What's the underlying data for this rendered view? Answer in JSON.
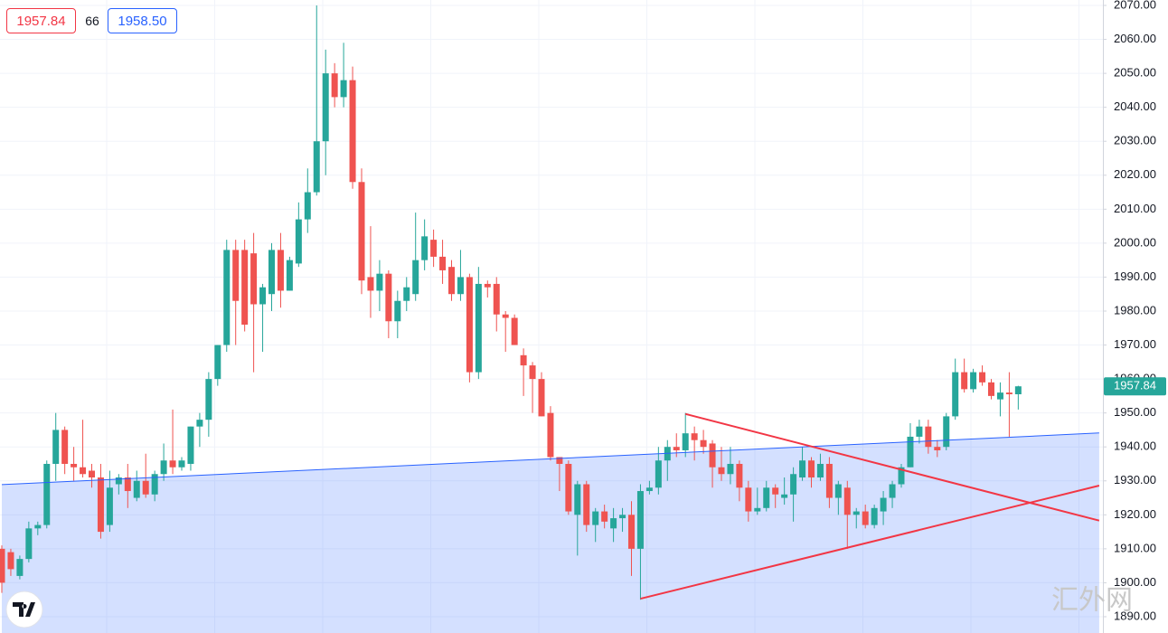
{
  "header": {
    "sell": "1957.84",
    "spread": "66",
    "buy": "1958.50"
  },
  "watermark": "汇外网",
  "chart_data": {
    "type": "candlestick",
    "up_color": "#26a69a",
    "down_color": "#ef5350",
    "ylim": [
      1885.2,
      2071.6
    ],
    "yticks": [
      {
        "value": 1890,
        "label": "1890.00"
      },
      {
        "value": 1900,
        "label": "1900.00"
      },
      {
        "value": 1910,
        "label": "1910.00"
      },
      {
        "value": 1920,
        "label": "1920.00"
      },
      {
        "value": 1930,
        "label": "1930.00"
      },
      {
        "value": 1940,
        "label": "1940.00"
      },
      {
        "value": 1950,
        "label": "1950.00"
      },
      {
        "value": 1960,
        "label": "1960.00"
      },
      {
        "value": 1970,
        "label": "1970.00"
      },
      {
        "value": 1980,
        "label": "1980.00"
      },
      {
        "value": 1990,
        "label": "1990.00"
      },
      {
        "value": 2000,
        "label": "2000.00"
      },
      {
        "value": 2010,
        "label": "2010.00"
      },
      {
        "value": 2020,
        "label": "2020.00"
      },
      {
        "value": 2030,
        "label": "2030.00"
      },
      {
        "value": 2040,
        "label": "2040.00"
      },
      {
        "value": 2050,
        "label": "2050.00"
      },
      {
        "value": 2060,
        "label": "2060.00"
      },
      {
        "value": 2070,
        "label": "2070.00"
      }
    ],
    "grid": true,
    "last_price": 1957.84,
    "last_price_color": "#26a69a",
    "trendlines": [
      {
        "color": "#2962ff",
        "fill_below": true,
        "points": [
          [
            0,
            1928.9
          ],
          [
            122,
            1944.1
          ]
        ]
      },
      {
        "color": "#f23645",
        "points": [
          [
            76,
            1949.7
          ],
          [
            122,
            1918.3
          ]
        ]
      },
      {
        "color": "#f23645",
        "points": [
          [
            71,
            1895.3
          ],
          [
            122,
            1928.6
          ]
        ]
      }
    ],
    "ohlc": [
      [
        1910,
        1911,
        1897,
        1900
      ],
      [
        1909,
        1910,
        1902,
        1904
      ],
      [
        1902,
        1908,
        1901,
        1907
      ],
      [
        1907,
        1918,
        1906,
        1916
      ],
      [
        1916,
        1918,
        1914,
        1917
      ],
      [
        1917,
        1936,
        1916,
        1935
      ],
      [
        1935,
        1950,
        1930,
        1945
      ],
      [
        1945,
        1946,
        1932,
        1935
      ],
      [
        1935,
        1940,
        1930,
        1934
      ],
      [
        1934,
        1948,
        1931,
        1932
      ],
      [
        1933,
        1935,
        1928,
        1931
      ],
      [
        1931,
        1935,
        1913,
        1915
      ],
      [
        1917,
        1933,
        1915,
        1928
      ],
      [
        1929,
        1932,
        1926,
        1931
      ],
      [
        1931,
        1935,
        1922,
        1927
      ],
      [
        1925,
        1933,
        1924,
        1930
      ],
      [
        1930,
        1938,
        1925,
        1926
      ],
      [
        1926,
        1933,
        1924,
        1932
      ],
      [
        1932,
        1941,
        1930,
        1936
      ],
      [
        1936,
        1951,
        1932,
        1934
      ],
      [
        1934,
        1937,
        1933,
        1936
      ],
      [
        1935,
        1946,
        1933,
        1946
      ],
      [
        1946,
        1950,
        1940,
        1948
      ],
      [
        1948,
        1962,
        1943,
        1960
      ],
      [
        1960,
        1970,
        1958,
        1970
      ],
      [
        1970,
        2001,
        1968,
        1998
      ],
      [
        1998,
        2001,
        1970,
        1983
      ],
      [
        1998,
        2001,
        1974,
        1976
      ],
      [
        1997,
        2003,
        1962,
        1982
      ],
      [
        1982,
        1988,
        1968,
        1987
      ],
      [
        1985,
        2000,
        1980,
        1998
      ],
      [
        1998,
        2003,
        1981,
        1986
      ],
      [
        1986,
        1996,
        1986,
        1995
      ],
      [
        1994,
        2012,
        1993,
        2007
      ],
      [
        2007,
        2022,
        2003,
        2015
      ],
      [
        2015,
        2070,
        2014,
        2030
      ],
      [
        2030,
        2057,
        2020,
        2050
      ],
      [
        2050,
        2053,
        2040,
        2043
      ],
      [
        2043,
        2059,
        2040,
        2048
      ],
      [
        2048,
        2052,
        2016,
        2018
      ],
      [
        2018,
        2022,
        1985,
        1989
      ],
      [
        1990,
        2005,
        1978,
        1986
      ],
      [
        1986,
        1995,
        1980,
        1991
      ],
      [
        1991,
        1992,
        1972,
        1977
      ],
      [
        1977,
        1986,
        1972,
        1983
      ],
      [
        1983,
        1990,
        1980,
        1987
      ],
      [
        1985,
        2009,
        1983,
        1995
      ],
      [
        1995,
        2007,
        1992,
        2002
      ],
      [
        2001,
        2004,
        1993,
        1996
      ],
      [
        1996,
        2001,
        1988,
        1992
      ],
      [
        1993,
        1995,
        1983,
        1985
      ],
      [
        1985,
        1998,
        1983,
        1990
      ],
      [
        1990,
        1991,
        1959,
        1962
      ],
      [
        1962,
        1993,
        1960,
        1988
      ],
      [
        1988,
        1989,
        1984,
        1987
      ],
      [
        1988,
        1990,
        1974,
        1979
      ],
      [
        1979,
        1980,
        1968,
        1978
      ],
      [
        1978,
        1979,
        1970,
        1970
      ],
      [
        1967,
        1969,
        1955,
        1964
      ],
      [
        1964,
        1965,
        1950,
        1960
      ],
      [
        1960,
        1962,
        1949,
        1949
      ],
      [
        1950,
        1952,
        1936,
        1937
      ],
      [
        1937,
        1937,
        1927,
        1935
      ],
      [
        1935,
        1936,
        1920,
        1921
      ],
      [
        1920,
        1930,
        1908,
        1929
      ],
      [
        1929,
        1930,
        1915,
        1917
      ],
      [
        1917,
        1922,
        1912,
        1921
      ],
      [
        1921,
        1923,
        1916,
        1918
      ],
      [
        1916,
        1922,
        1912,
        1919
      ],
      [
        1919,
        1922,
        1915,
        1920
      ],
      [
        1920,
        1924,
        1902,
        1910
      ],
      [
        1910,
        1929,
        1895,
        1927
      ],
      [
        1927,
        1930,
        1926,
        1928
      ],
      [
        1928,
        1940,
        1926,
        1936
      ],
      [
        1936,
        1942,
        1930,
        1940
      ],
      [
        1940,
        1944,
        1937,
        1939
      ],
      [
        1939,
        1950,
        1937,
        1944
      ],
      [
        1944,
        1946,
        1936,
        1942
      ],
      [
        1942,
        1945,
        1938,
        1940
      ],
      [
        1941,
        1942,
        1928,
        1934
      ],
      [
        1934,
        1940,
        1930,
        1932
      ],
      [
        1932,
        1940,
        1929,
        1935
      ],
      [
        1935,
        1936,
        1924,
        1928
      ],
      [
        1928,
        1930,
        1918,
        1921
      ],
      [
        1921,
        1928,
        1920,
        1922
      ],
      [
        1922,
        1930,
        1921,
        1928
      ],
      [
        1928,
        1929,
        1922,
        1926
      ],
      [
        1925,
        1931,
        1923,
        1926
      ],
      [
        1926,
        1934,
        1918,
        1932
      ],
      [
        1931,
        1940,
        1930,
        1936
      ],
      [
        1936,
        1937,
        1928,
        1931
      ],
      [
        1931,
        1938,
        1930,
        1935
      ],
      [
        1935,
        1937,
        1922,
        1925
      ],
      [
        1925,
        1930,
        1920,
        1929
      ],
      [
        1928,
        1930,
        1910,
        1920
      ],
      [
        1920,
        1922,
        1916,
        1921
      ],
      [
        1921,
        1923,
        1916,
        1917
      ],
      [
        1917,
        1923,
        1916,
        1922
      ],
      [
        1921,
        1927,
        1917,
        1925
      ],
      [
        1925,
        1930,
        1922,
        1929
      ],
      [
        1929,
        1935,
        1928,
        1934
      ],
      [
        1934,
        1947,
        1934,
        1943
      ],
      [
        1943,
        1948,
        1941,
        1946
      ],
      [
        1946,
        1948,
        1938,
        1940
      ],
      [
        1940,
        1942,
        1937,
        1939
      ],
      [
        1940,
        1950,
        1939,
        1949
      ],
      [
        1949,
        1966,
        1948,
        1962
      ],
      [
        1962,
        1966,
        1956,
        1957
      ],
      [
        1957,
        1963,
        1956,
        1962
      ],
      [
        1962,
        1964,
        1958,
        1959
      ],
      [
        1959,
        1960,
        1954,
        1955
      ],
      [
        1954,
        1959,
        1949,
        1956
      ],
      [
        1956,
        1962,
        1943,
        1955.5
      ],
      [
        1955.5,
        1958,
        1951,
        1957.84
      ]
    ]
  }
}
